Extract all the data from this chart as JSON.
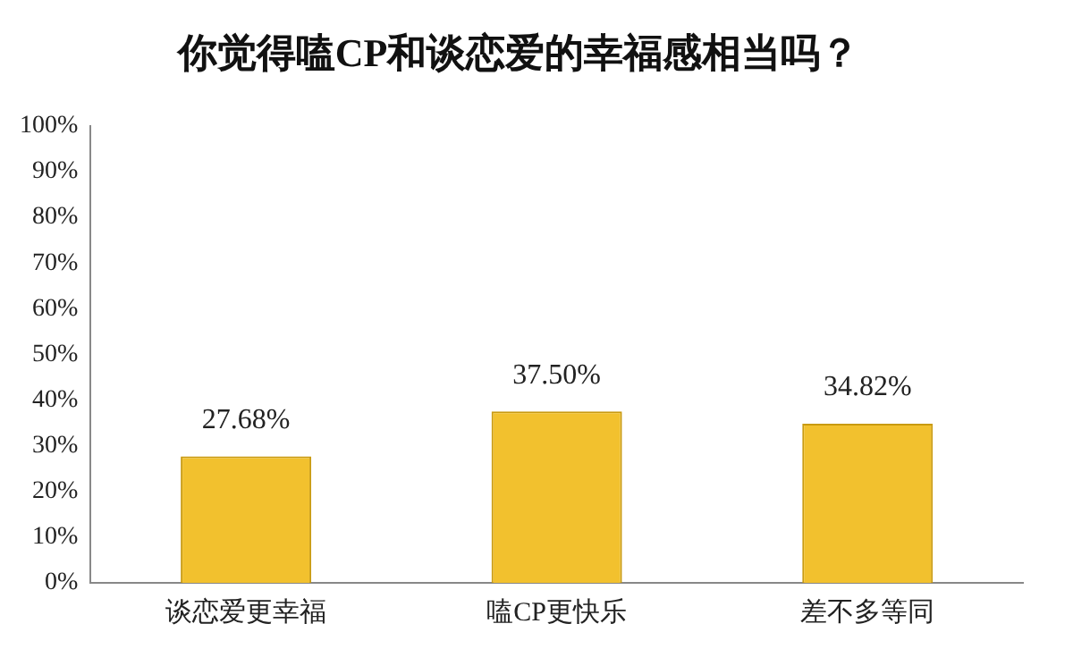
{
  "chart_data": {
    "type": "bar",
    "title": "你觉得嗑CP和谈恋爱的幸福感相当吗？",
    "categories": [
      "谈恋爱更幸福",
      "嗑CP更快乐",
      "差不多等同"
    ],
    "values": [
      27.68,
      37.5,
      34.82
    ],
    "value_labels": [
      "27.68%",
      "37.50%",
      "34.82%"
    ],
    "color": "#f2c12e",
    "ylim": [
      0,
      100
    ],
    "yticks": [
      {
        "value": 0,
        "label": "0%"
      },
      {
        "value": 10,
        "label": "10%"
      },
      {
        "value": 20,
        "label": "20%"
      },
      {
        "value": 30,
        "label": "30%"
      },
      {
        "value": 40,
        "label": "40%"
      },
      {
        "value": 50,
        "label": "50%"
      },
      {
        "value": 60,
        "label": "60%"
      },
      {
        "value": 70,
        "label": "70%"
      },
      {
        "value": 80,
        "label": "80%"
      },
      {
        "value": 90,
        "label": "90%"
      },
      {
        "value": 100,
        "label": "100%"
      }
    ],
    "grid": false,
    "legend": false
  }
}
